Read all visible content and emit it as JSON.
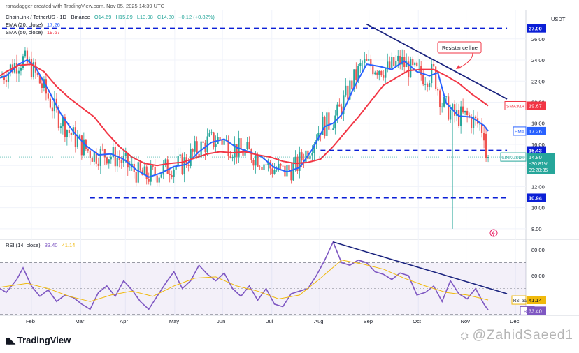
{
  "header": {
    "credit": "ranadagger created with TradingView.com, Nov 05, 2025 14:39 UTC",
    "symbol": "ChainLink / TetherUS · 1D · Binance",
    "ohlc_o": "O14.69",
    "ohlc_h": "H15.09",
    "ohlc_l": "L13.98",
    "ohlc_c": "C14.80",
    "ohlc_chg": "+0.12 (+0.82%)",
    "ema_label": "EMA (20, close)",
    "ema_value": "17.26",
    "sma_label": "SMA (50, close)",
    "sma_value": "19.67",
    "rsi_label": "RSI (14, close)",
    "rsi_value": "33.40",
    "rsi_ma_value": "41.14"
  },
  "footer": {
    "brand": "TradingView",
    "watermark": "@ZahidSaeed1"
  },
  "chart_data": [
    {
      "type": "candlestick",
      "currency": "USDT",
      "ylim": [
        7.2,
        28.5
      ],
      "y_ticks": [
        8.0,
        10.0,
        12.0,
        14.0,
        16.0,
        18.0,
        20.0,
        22.0,
        24.0,
        26.0
      ],
      "x_ticks": [
        "Feb",
        "Mar",
        "Apr",
        "May",
        "Jun",
        "Jul",
        "Aug",
        "Sep",
        "Oct",
        "Nov",
        "Dec"
      ],
      "grid": true,
      "horizontal_levels": [
        {
          "price": 27.0,
          "label": "27.00"
        },
        {
          "price": 15.43,
          "label": "15.43"
        },
        {
          "price": 10.94,
          "label": "10.94"
        }
      ],
      "annotation": "Resistance line",
      "price_labels": [
        {
          "label": "SMA:MA",
          "value": "19.67",
          "price": 19.67,
          "color": "#f23645"
        },
        {
          "label": "EMA",
          "value": "17.26",
          "price": 17.26,
          "color": "#2962ff"
        },
        {
          "label": "LINKUSDT",
          "value": "14.80",
          "extra1": "−30.81%",
          "extra2": "09:20:35",
          "price": 14.8,
          "color": "#26a69a"
        }
      ],
      "series": [
        {
          "name": "EMA (20, close)",
          "color": "#2962ff",
          "points": [
            [
              -3,
              22.3
            ],
            [
              0,
              22.5
            ],
            [
              6,
              23.6
            ],
            [
              10,
              24.0
            ],
            [
              14,
              23.3
            ],
            [
              20,
              21.2
            ],
            [
              26,
              18.9
            ],
            [
              32,
              17.2
            ],
            [
              38,
              15.9
            ],
            [
              44,
              15.0
            ],
            [
              50,
              15.1
            ],
            [
              56,
              14.6
            ],
            [
              62,
              13.6
            ],
            [
              68,
              12.9
            ],
            [
              74,
              13.3
            ],
            [
              80,
              13.9
            ],
            [
              86,
              14.1
            ],
            [
              92,
              15.3
            ],
            [
              98,
              16.2
            ],
            [
              104,
              16.5
            ],
            [
              110,
              15.7
            ],
            [
              116,
              15.3
            ],
            [
              122,
              14.8
            ],
            [
              128,
              13.8
            ],
            [
              134,
              13.4
            ],
            [
              140,
              13.8
            ],
            [
              146,
              15.5
            ],
            [
              152,
              17.7
            ],
            [
              156,
              18.0
            ],
            [
              160,
              18.8
            ],
            [
              166,
              21.4
            ],
            [
              172,
              23.6
            ],
            [
              178,
              23.4
            ],
            [
              184,
              23.1
            ],
            [
              190,
              23.9
            ],
            [
              196,
              22.9
            ],
            [
              202,
              22.5
            ],
            [
              206,
              22.8
            ],
            [
              210,
              19.9
            ],
            [
              216,
              18.7
            ],
            [
              222,
              18.6
            ],
            [
              228,
              17.8
            ],
            [
              230,
              17.26
            ]
          ]
        },
        {
          "name": "SMA (50, close)",
          "color": "#f23645",
          "points": [
            [
              -3,
              22.5
            ],
            [
              0,
              22.9
            ],
            [
              6,
              23.5
            ],
            [
              12,
              23.6
            ],
            [
              18,
              22.9
            ],
            [
              24,
              21.5
            ],
            [
              30,
              20.4
            ],
            [
              36,
              19.5
            ],
            [
              42,
              18.6
            ],
            [
              48,
              17.1
            ],
            [
              54,
              15.8
            ],
            [
              60,
              14.8
            ],
            [
              66,
              14.2
            ],
            [
              72,
              14.0
            ],
            [
              78,
              14.2
            ],
            [
              84,
              14.3
            ],
            [
              90,
              14.7
            ],
            [
              96,
              15.1
            ],
            [
              102,
              15.3
            ],
            [
              108,
              15.2
            ],
            [
              114,
              15.3
            ],
            [
              120,
              15.0
            ],
            [
              126,
              14.8
            ],
            [
              132,
              14.4
            ],
            [
              138,
              14.2
            ],
            [
              144,
              14.3
            ],
            [
              150,
              14.6
            ],
            [
              156,
              15.8
            ],
            [
              162,
              17.2
            ],
            [
              168,
              18.6
            ],
            [
              174,
              20.1
            ],
            [
              180,
              21.6
            ],
            [
              186,
              22.3
            ],
            [
              192,
              23.0
            ],
            [
              198,
              23.1
            ],
            [
              204,
              23.1
            ],
            [
              210,
              22.5
            ],
            [
              216,
              21.8
            ],
            [
              222,
              20.8
            ],
            [
              230,
              19.67
            ]
          ]
        }
      ],
      "trendlines": [
        {
          "from": [
            -2,
            27.0
          ],
          "to": [
            239,
            27.0
          ],
          "style": "dashed"
        },
        {
          "from": [
            150,
            15.43
          ],
          "to": [
            239,
            15.43
          ],
          "style": "dashed"
        },
        {
          "from": [
            40,
            10.94
          ],
          "to": [
            239,
            10.94
          ],
          "style": "dashed"
        },
        {
          "from": [
            172,
            27.4
          ],
          "to": [
            239,
            20.3
          ],
          "style": "solid"
        }
      ]
    },
    {
      "type": "line",
      "indicator": "RSI (14, close)",
      "ylim": [
        32,
        87
      ],
      "y_ticks": [
        40.0,
        60.0,
        80.0
      ],
      "band": [
        30,
        70
      ],
      "series": [
        {
          "name": "RSI",
          "color": "#7e57c2",
          "value_label": "33.40",
          "points": [
            [
              -3,
              50
            ],
            [
              0,
              47
            ],
            [
              5,
              57
            ],
            [
              8,
              66
            ],
            [
              12,
              52
            ],
            [
              16,
              44
            ],
            [
              20,
              49
            ],
            [
              24,
              40
            ],
            [
              28,
              45
            ],
            [
              32,
              43
            ],
            [
              36,
              38
            ],
            [
              40,
              34
            ],
            [
              44,
              47
            ],
            [
              48,
              52
            ],
            [
              52,
              44
            ],
            [
              56,
              56
            ],
            [
              60,
              49
            ],
            [
              64,
              40
            ],
            [
              68,
              34
            ],
            [
              72,
              44
            ],
            [
              76,
              54
            ],
            [
              80,
              63
            ],
            [
              84,
              50
            ],
            [
              88,
              56
            ],
            [
              92,
              68
            ],
            [
              96,
              61
            ],
            [
              100,
              56
            ],
            [
              104,
              62
            ],
            [
              108,
              50
            ],
            [
              112,
              44
            ],
            [
              116,
              52
            ],
            [
              120,
              41
            ],
            [
              124,
              50
            ],
            [
              128,
              38
            ],
            [
              132,
              36
            ],
            [
              136,
              46
            ],
            [
              140,
              48
            ],
            [
              144,
              50
            ],
            [
              148,
              60
            ],
            [
              152,
              72
            ],
            [
              156,
              86
            ],
            [
              160,
              70
            ],
            [
              164,
              68
            ],
            [
              168,
              72
            ],
            [
              172,
              70
            ],
            [
              176,
              63
            ],
            [
              180,
              61
            ],
            [
              184,
              57
            ],
            [
              188,
              62
            ],
            [
              192,
              60
            ],
            [
              196,
              45
            ],
            [
              200,
              47
            ],
            [
              204,
              52
            ],
            [
              208,
              40
            ],
            [
              212,
              56
            ],
            [
              216,
              46
            ],
            [
              220,
              42
            ],
            [
              224,
              50
            ],
            [
              228,
              38
            ],
            [
              230,
              33.4
            ]
          ]
        },
        {
          "name": "RSI-based MA",
          "color": "#f0b90b",
          "value_label": "41.14",
          "points": [
            [
              -3,
              51
            ],
            [
              10,
              54
            ],
            [
              20,
              50
            ],
            [
              30,
              44
            ],
            [
              40,
              40
            ],
            [
              50,
              45
            ],
            [
              60,
              48
            ],
            [
              70,
              44
            ],
            [
              80,
              52
            ],
            [
              90,
              58
            ],
            [
              100,
              59
            ],
            [
              110,
              52
            ],
            [
              120,
              48
            ],
            [
              130,
              42
            ],
            [
              140,
              45
            ],
            [
              150,
              58
            ],
            [
              160,
              72
            ],
            [
              170,
              69
            ],
            [
              180,
              65
            ],
            [
              190,
              58
            ],
            [
              200,
              52
            ],
            [
              210,
              47
            ],
            [
              220,
              45
            ],
            [
              230,
              41.14
            ]
          ]
        }
      ],
      "trendlines": [
        {
          "from": [
            156,
            86
          ],
          "to": [
            239,
            46
          ],
          "style": "solid"
        }
      ]
    }
  ]
}
